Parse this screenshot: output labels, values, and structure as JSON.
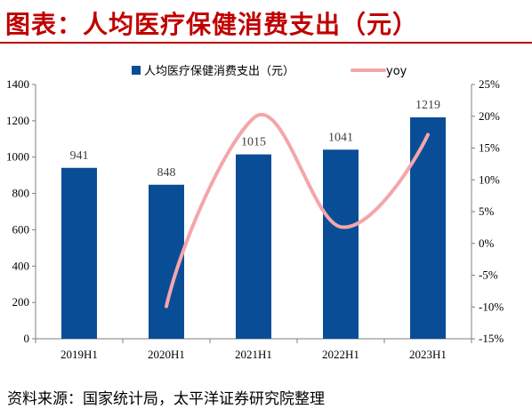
{
  "header": {
    "title": "图表：人均医疗保健消费支出（元）"
  },
  "footer": {
    "source": "资料来源：国家统计局，太平洋证券研究院整理"
  },
  "colors": {
    "title": "#c00000",
    "bar": "#0a4d97",
    "line": "#f4a6ab"
  },
  "chart_data": {
    "type": "bar",
    "categories": [
      "2019H1",
      "2020H1",
      "2021H1",
      "2022H1",
      "2023H1"
    ],
    "series": [
      {
        "name": "人均医疗保健消费支出（元）",
        "type": "bar",
        "axis": "left",
        "values": [
          941,
          848,
          1015,
          1041,
          1219
        ]
      },
      {
        "name": "yoy",
        "type": "line",
        "axis": "right",
        "unit": "%",
        "values": [
          null,
          -9.9,
          19.7,
          2.6,
          17.1
        ]
      }
    ],
    "data_labels": [
      "941",
      "848",
      "1015",
      "1041",
      "1219"
    ],
    "y_left": {
      "min": 0,
      "max": 1400,
      "step": 200,
      "ticks": [
        "0",
        "200",
        "400",
        "600",
        "800",
        "1000",
        "1200",
        "1400"
      ]
    },
    "y_right": {
      "min": -15,
      "max": 25,
      "step": 5,
      "ticks": [
        "-15%",
        "-10%",
        "-5%",
        "0%",
        "5%",
        "10%",
        "15%",
        "20%",
        "25%"
      ]
    },
    "legend": {
      "position": "top",
      "items": [
        "人均医疗保健消费支出（元）",
        "yoy"
      ]
    },
    "grid": false,
    "line_smooth": true
  }
}
